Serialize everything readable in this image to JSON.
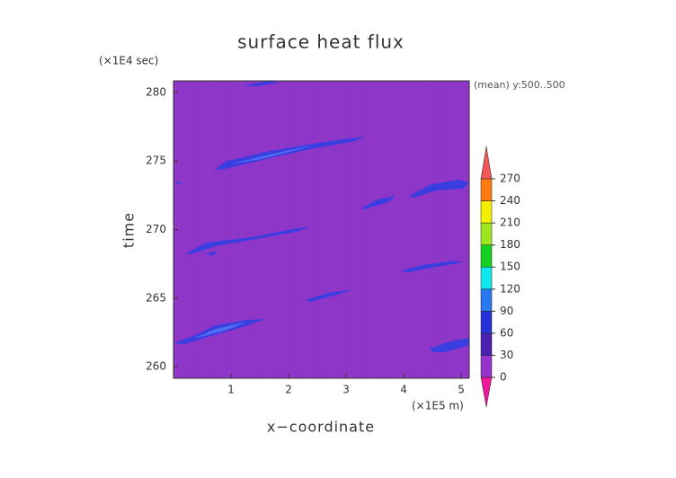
{
  "chart_data": {
    "type": "contour",
    "title": "surface heat flux",
    "x_label": "x−coordinate",
    "y_label": "time",
    "x_unit": "(×1E5 m)",
    "y_unit": "(×1E4 sec)",
    "annotation": "(mean) y:500..500",
    "xlim": [
      0,
      5.14
    ],
    "xticks": [
      1,
      2,
      3,
      4,
      5
    ],
    "ylim": [
      259.15,
      280.85
    ],
    "yticks": [
      260,
      265,
      270,
      275,
      280
    ],
    "background_color": "#8c34c6",
    "colorbar": {
      "levels": [
        0,
        30,
        60,
        90,
        120,
        150,
        180,
        210,
        240,
        270
      ],
      "colors": [
        "#9434cc",
        "#4a20b0",
        "#2430d8",
        "#2a78f0",
        "#10e8f0",
        "#14d21e",
        "#9ee61e",
        "#f2f000",
        "#ff7a10"
      ],
      "over_color": "#f05858",
      "under_color": "#f0189a"
    }
  }
}
